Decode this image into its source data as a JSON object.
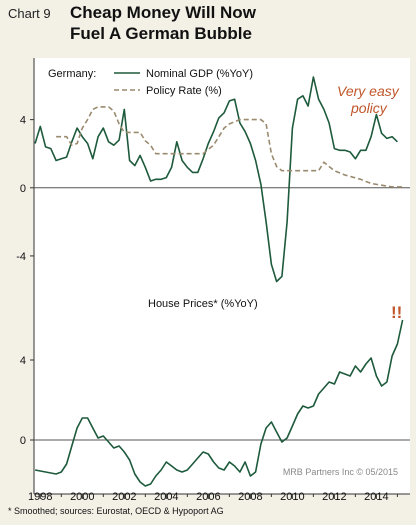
{
  "header": {
    "chart_number": "Chart 9",
    "title_line1": "Cheap Money Will Now",
    "title_line2": "Fuel A German Bubble"
  },
  "footer": {
    "note": "* Smoothed; sources: Eurostat, OECD & Hypoport AG",
    "credit": "MRB Partners Inc © 05/2015"
  },
  "colors": {
    "gdp": "#1e5a3c",
    "policy": "#9a8a6e",
    "house": "#1e5a3c",
    "annotation": "#c0562a",
    "background": "#f3f0e6",
    "panel": "#ffffff"
  },
  "chart_data": [
    {
      "type": "line",
      "legend_title": "Germany:",
      "legend_position": "top-left",
      "annotation": [
        "Very easy",
        "policy"
      ],
      "ylim": [
        -6,
        7.5
      ],
      "yticks": [
        4,
        0,
        -4
      ],
      "series": [
        {
          "name": "Nominal GDP (%YoY)",
          "style": "solid",
          "points": [
            [
              1997.75,
              2.6
            ],
            [
              1998.0,
              3.6
            ],
            [
              1998.25,
              2.4
            ],
            [
              1998.5,
              2.3
            ],
            [
              1998.75,
              1.6
            ],
            [
              1999.0,
              1.7
            ],
            [
              1999.25,
              1.8
            ],
            [
              1999.5,
              2.7
            ],
            [
              1999.75,
              3.5
            ],
            [
              2000.0,
              3.0
            ],
            [
              2000.25,
              2.6
            ],
            [
              2000.5,
              1.7
            ],
            [
              2000.75,
              3.0
            ],
            [
              2001.0,
              3.5
            ],
            [
              2001.25,
              2.7
            ],
            [
              2001.5,
              2.5
            ],
            [
              2001.75,
              2.8
            ],
            [
              2002.0,
              4.6
            ],
            [
              2002.25,
              1.6
            ],
            [
              2002.5,
              1.3
            ],
            [
              2002.75,
              1.9
            ],
            [
              2003.0,
              1.2
            ],
            [
              2003.25,
              0.4
            ],
            [
              2003.5,
              0.5
            ],
            [
              2003.75,
              0.5
            ],
            [
              2004.0,
              0.6
            ],
            [
              2004.25,
              1.2
            ],
            [
              2004.5,
              2.7
            ],
            [
              2004.75,
              1.6
            ],
            [
              2005.0,
              1.2
            ],
            [
              2005.25,
              0.9
            ],
            [
              2005.5,
              0.9
            ],
            [
              2005.75,
              1.7
            ],
            [
              2006.0,
              2.6
            ],
            [
              2006.25,
              3.3
            ],
            [
              2006.5,
              4.1
            ],
            [
              2006.75,
              4.4
            ],
            [
              2007.0,
              5.1
            ],
            [
              2007.25,
              5.2
            ],
            [
              2007.5,
              3.8
            ],
            [
              2007.75,
              3.3
            ],
            [
              2008.0,
              2.6
            ],
            [
              2008.25,
              1.6
            ],
            [
              2008.5,
              0.2
            ],
            [
              2008.75,
              -2.0
            ],
            [
              2009.0,
              -4.5
            ],
            [
              2009.25,
              -5.5
            ],
            [
              2009.5,
              -5.2
            ],
            [
              2009.75,
              -2.0
            ],
            [
              2010.0,
              3.5
            ],
            [
              2010.25,
              5.2
            ],
            [
              2010.5,
              5.4
            ],
            [
              2010.75,
              4.8
            ],
            [
              2011.0,
              6.5
            ],
            [
              2011.25,
              5.2
            ],
            [
              2011.5,
              4.6
            ],
            [
              2011.75,
              3.8
            ],
            [
              2012.0,
              2.3
            ],
            [
              2012.25,
              2.2
            ],
            [
              2012.5,
              2.2
            ],
            [
              2012.75,
              2.1
            ],
            [
              2013.0,
              1.7
            ],
            [
              2013.25,
              2.2
            ],
            [
              2013.5,
              2.2
            ],
            [
              2013.75,
              3.0
            ],
            [
              2014.0,
              4.3
            ],
            [
              2014.25,
              3.2
            ],
            [
              2014.5,
              2.9
            ],
            [
              2014.75,
              3.0
            ],
            [
              2015.0,
              2.7
            ]
          ]
        },
        {
          "name": "Policy Rate (%)",
          "style": "dashed",
          "points": [
            [
              1998.75,
              3.0
            ],
            [
              1999.25,
              3.0
            ],
            [
              1999.5,
              2.5
            ],
            [
              1999.75,
              2.6
            ],
            [
              2000.0,
              3.5
            ],
            [
              2000.25,
              4.0
            ],
            [
              2000.5,
              4.6
            ],
            [
              2000.75,
              4.75
            ],
            [
              2001.25,
              4.75
            ],
            [
              2001.5,
              4.5
            ],
            [
              2001.75,
              3.75
            ],
            [
              2002.0,
              3.25
            ],
            [
              2002.75,
              3.25
            ],
            [
              2003.0,
              2.75
            ],
            [
              2003.25,
              2.5
            ],
            [
              2003.5,
              2.0
            ],
            [
              2005.75,
              2.0
            ],
            [
              2006.0,
              2.25
            ],
            [
              2006.25,
              2.5
            ],
            [
              2006.5,
              3.0
            ],
            [
              2006.75,
              3.5
            ],
            [
              2007.0,
              3.75
            ],
            [
              2007.5,
              4.0
            ],
            [
              2008.5,
              4.0
            ],
            [
              2008.75,
              3.75
            ],
            [
              2009.0,
              2.0
            ],
            [
              2009.25,
              1.25
            ],
            [
              2009.5,
              1.0
            ],
            [
              2011.25,
              1.0
            ],
            [
              2011.5,
              1.5
            ],
            [
              2011.75,
              1.25
            ],
            [
              2012.0,
              1.0
            ],
            [
              2012.5,
              0.75
            ],
            [
              2013.25,
              0.5
            ],
            [
              2013.75,
              0.25
            ],
            [
              2014.25,
              0.15
            ],
            [
              2014.75,
              0.05
            ],
            [
              2015.25,
              0.05
            ]
          ]
        }
      ]
    },
    {
      "type": "line",
      "legend_title": "House Prices* (%YoY)",
      "annotation": [
        "!!"
      ],
      "ylim": [
        -2.5,
        7
      ],
      "yticks": [
        4,
        0
      ],
      "series": [
        {
          "name": "House Prices* (%YoY)",
          "style": "solid",
          "points": [
            [
              1997.75,
              -1.5
            ],
            [
              1998.25,
              -1.6
            ],
            [
              1998.75,
              -1.7
            ],
            [
              1999.0,
              -1.6
            ],
            [
              1999.25,
              -1.2
            ],
            [
              1999.5,
              -0.3
            ],
            [
              1999.75,
              0.6
            ],
            [
              2000.0,
              1.1
            ],
            [
              2000.25,
              1.1
            ],
            [
              2000.5,
              0.6
            ],
            [
              2000.75,
              0.1
            ],
            [
              2001.0,
              0.2
            ],
            [
              2001.25,
              -0.1
            ],
            [
              2001.5,
              -0.4
            ],
            [
              2001.75,
              -0.3
            ],
            [
              2002.0,
              -0.6
            ],
            [
              2002.25,
              -1.0
            ],
            [
              2002.5,
              -1.7
            ],
            [
              2002.75,
              -2.1
            ],
            [
              2003.0,
              -2.3
            ],
            [
              2003.25,
              -2.2
            ],
            [
              2003.5,
              -1.8
            ],
            [
              2003.75,
              -1.5
            ],
            [
              2004.0,
              -1.1
            ],
            [
              2004.25,
              -1.3
            ],
            [
              2004.5,
              -1.5
            ],
            [
              2004.75,
              -1.6
            ],
            [
              2005.0,
              -1.5
            ],
            [
              2005.25,
              -1.2
            ],
            [
              2005.5,
              -0.9
            ],
            [
              2005.75,
              -0.6
            ],
            [
              2006.0,
              -0.7
            ],
            [
              2006.25,
              -1.1
            ],
            [
              2006.5,
              -1.4
            ],
            [
              2006.75,
              -1.5
            ],
            [
              2007.0,
              -1.1
            ],
            [
              2007.25,
              -1.3
            ],
            [
              2007.5,
              -1.6
            ],
            [
              2007.75,
              -1.1
            ],
            [
              2008.0,
              -1.8
            ],
            [
              2008.25,
              -1.6
            ],
            [
              2008.5,
              -0.2
            ],
            [
              2008.75,
              0.6
            ],
            [
              2009.0,
              0.9
            ],
            [
              2009.25,
              0.4
            ],
            [
              2009.5,
              -0.1
            ],
            [
              2009.75,
              0.1
            ],
            [
              2010.0,
              0.7
            ],
            [
              2010.25,
              1.3
            ],
            [
              2010.5,
              1.7
            ],
            [
              2010.75,
              1.6
            ],
            [
              2011.0,
              1.7
            ],
            [
              2011.25,
              2.3
            ],
            [
              2011.5,
              2.6
            ],
            [
              2011.75,
              2.9
            ],
            [
              2012.0,
              2.8
            ],
            [
              2012.25,
              3.4
            ],
            [
              2012.5,
              3.3
            ],
            [
              2012.75,
              3.2
            ],
            [
              2013.0,
              3.7
            ],
            [
              2013.25,
              3.4
            ],
            [
              2013.5,
              3.8
            ],
            [
              2013.75,
              4.1
            ],
            [
              2014.0,
              3.2
            ],
            [
              2014.25,
              2.7
            ],
            [
              2014.5,
              2.9
            ],
            [
              2014.75,
              4.2
            ],
            [
              2015.0,
              4.8
            ],
            [
              2015.25,
              6.0
            ]
          ]
        }
      ]
    }
  ],
  "x_axis": {
    "xlim": [
      1997.7,
      2015.6
    ],
    "tick_labels": [
      "1998",
      "2000",
      "2002",
      "2004",
      "2006",
      "2008",
      "2010",
      "2012",
      "2014"
    ],
    "tick_values": [
      1998,
      2000,
      2002,
      2004,
      2006,
      2008,
      2010,
      2012,
      2014
    ]
  }
}
